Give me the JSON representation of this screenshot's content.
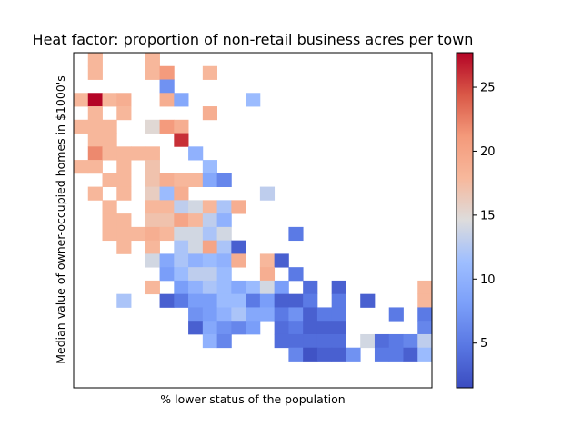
{
  "chart_data": {
    "type": "heatmap",
    "title": "Heat factor: proportion of non-retail business acres per town",
    "xlabel": "% lower status of the population",
    "ylabel": "Median value of owner-occupied homes in $1000's",
    "colormap": "coolwarm",
    "colorbar": {
      "min": 1.5,
      "max": 27.7,
      "ticks": [
        5,
        10,
        15,
        20,
        25
      ]
    },
    "x_tick_labels": [],
    "y_tick_labels": [],
    "grid": false,
    "legend": "colorbar right",
    "n_cols": 25,
    "n_rows": 25,
    "row_order": "top-to-bottom (highest home value first)",
    "values": [
      [
        null,
        18,
        null,
        null,
        null,
        18,
        null,
        null,
        null,
        null,
        null,
        null,
        null,
        null,
        null,
        null,
        null,
        null,
        null,
        null,
        null,
        null,
        null,
        null,
        null
      ],
      [
        null,
        18,
        null,
        null,
        null,
        18,
        21,
        null,
        null,
        18,
        null,
        null,
        null,
        null,
        null,
        null,
        null,
        null,
        null,
        null,
        null,
        null,
        null,
        null,
        null
      ],
      [
        null,
        null,
        null,
        null,
        null,
        null,
        7,
        null,
        null,
        null,
        null,
        null,
        null,
        null,
        null,
        null,
        null,
        null,
        null,
        null,
        null,
        null,
        null,
        null,
        null
      ],
      [
        18,
        28,
        18,
        19,
        null,
        null,
        19,
        9,
        null,
        null,
        null,
        null,
        11,
        null,
        null,
        null,
        null,
        null,
        null,
        null,
        null,
        null,
        null,
        null,
        null
      ],
      [
        null,
        18,
        null,
        18,
        null,
        null,
        null,
        null,
        null,
        19,
        null,
        null,
        null,
        null,
        null,
        null,
        null,
        null,
        null,
        null,
        null,
        null,
        null,
        null,
        null
      ],
      [
        18,
        18,
        18,
        null,
        null,
        15,
        21,
        19,
        null,
        null,
        null,
        null,
        null,
        null,
        null,
        null,
        null,
        null,
        null,
        null,
        null,
        null,
        null,
        null,
        null
      ],
      [
        null,
        18,
        18,
        null,
        null,
        null,
        null,
        26,
        null,
        null,
        null,
        null,
        null,
        null,
        null,
        null,
        null,
        null,
        null,
        null,
        null,
        null,
        null,
        null,
        null
      ],
      [
        null,
        22,
        18,
        18,
        18,
        18,
        null,
        null,
        10,
        null,
        null,
        null,
        null,
        null,
        null,
        null,
        null,
        null,
        null,
        null,
        null,
        null,
        null,
        null,
        null
      ],
      [
        18,
        18,
        null,
        18,
        null,
        17,
        null,
        null,
        null,
        11,
        null,
        null,
        null,
        null,
        null,
        null,
        null,
        null,
        null,
        null,
        null,
        null,
        null,
        null,
        null
      ],
      [
        null,
        null,
        18,
        18,
        null,
        17,
        19,
        18,
        18,
        9,
        6,
        null,
        null,
        null,
        null,
        null,
        null,
        null,
        null,
        null,
        null,
        null,
        null,
        null,
        null
      ],
      [
        null,
        18,
        null,
        18,
        null,
        16,
        11,
        19,
        null,
        null,
        null,
        null,
        null,
        13,
        null,
        null,
        null,
        null,
        null,
        null,
        null,
        null,
        null,
        null,
        null
      ],
      [
        null,
        null,
        18,
        null,
        null,
        18,
        18,
        13,
        14,
        18,
        12,
        19,
        null,
        null,
        null,
        null,
        null,
        null,
        null,
        null,
        null,
        null,
        null,
        null,
        null
      ],
      [
        null,
        null,
        18,
        18,
        null,
        17,
        17,
        20,
        18,
        13,
        10,
        null,
        null,
        null,
        null,
        null,
        null,
        null,
        null,
        null,
        null,
        null,
        null,
        null,
        null
      ],
      [
        null,
        null,
        18,
        18,
        18,
        19,
        18,
        14,
        14,
        12,
        14,
        null,
        null,
        null,
        null,
        5,
        null,
        null,
        null,
        null,
        null,
        null,
        null,
        null,
        null
      ],
      [
        null,
        null,
        null,
        18,
        null,
        18,
        null,
        12,
        14,
        20,
        12,
        3,
        null,
        null,
        null,
        null,
        null,
        null,
        null,
        null,
        null,
        null,
        null,
        null,
        null
      ],
      [
        null,
        null,
        null,
        null,
        null,
        14,
        9,
        12,
        10,
        11,
        10,
        19,
        null,
        18,
        3,
        null,
        null,
        null,
        null,
        null,
        null,
        null,
        null,
        null,
        null
      ],
      [
        null,
        null,
        null,
        null,
        null,
        null,
        8,
        11,
        13,
        13,
        11,
        null,
        null,
        19,
        null,
        5,
        null,
        null,
        null,
        null,
        null,
        null,
        null,
        null,
        null
      ],
      [
        null,
        null,
        null,
        null,
        null,
        18,
        null,
        8,
        10,
        12,
        11,
        9,
        11,
        14,
        8,
        null,
        4,
        null,
        3,
        null,
        null,
        null,
        null,
        null,
        18
      ],
      [
        null,
        null,
        null,
        12,
        null,
        null,
        3,
        5,
        8,
        8,
        11,
        11,
        5,
        8,
        3,
        3,
        5,
        null,
        5,
        null,
        3,
        null,
        null,
        null,
        18
      ],
      [
        null,
        null,
        null,
        null,
        null,
        null,
        null,
        null,
        7,
        8,
        10,
        12,
        9,
        9,
        5,
        7,
        3,
        5,
        5,
        null,
        null,
        null,
        5,
        null,
        5
      ],
      [
        null,
        null,
        null,
        null,
        null,
        null,
        null,
        null,
        3,
        9,
        7,
        6,
        8,
        null,
        4,
        5,
        3,
        3,
        3,
        null,
        null,
        null,
        null,
        null,
        6
      ],
      [
        null,
        null,
        null,
        null,
        null,
        null,
        null,
        null,
        null,
        10,
        6,
        null,
        null,
        null,
        4,
        4,
        4,
        4,
        4,
        null,
        14,
        4,
        5,
        6,
        13
      ],
      [
        null,
        null,
        null,
        null,
        null,
        null,
        null,
        null,
        null,
        null,
        null,
        null,
        null,
        null,
        null,
        6,
        2,
        3,
        3,
        7,
        null,
        5,
        5,
        3,
        11
      ],
      [
        null,
        null,
        null,
        null,
        null,
        null,
        null,
        null,
        null,
        null,
        null,
        null,
        null,
        null,
        null,
        null,
        null,
        null,
        null,
        null,
        null,
        null,
        null,
        null,
        null
      ],
      [
        null,
        null,
        null,
        null,
        null,
        null,
        null,
        null,
        null,
        null,
        null,
        null,
        null,
        null,
        null,
        null,
        null,
        null,
        null,
        null,
        null,
        null,
        null,
        null,
        null
      ]
    ]
  }
}
